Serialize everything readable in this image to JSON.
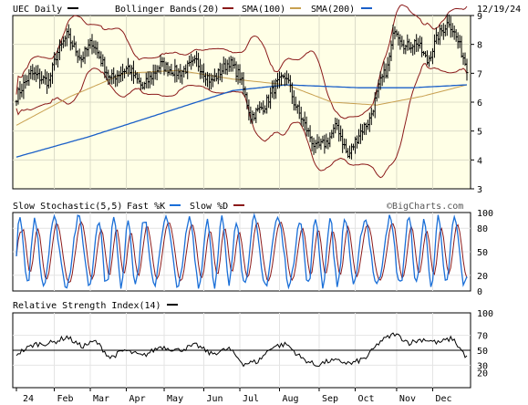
{
  "chart_data": [
    {
      "type": "candlestick",
      "title": "UEC Daily",
      "date": "12/19/24",
      "legend": [
        {
          "label": "Bollinger Bands(20)",
          "color": "#8b1a1a"
        },
        {
          "label": "SMA(100)",
          "color": "#c8a050"
        },
        {
          "label": "SMA(200)",
          "color": "#1a5fc8"
        }
      ],
      "ylim": [
        3,
        9
      ],
      "yticks": [
        3,
        4,
        5,
        6,
        7,
        8,
        9
      ],
      "months": [
        "24",
        "Feb",
        "Mar",
        "Apr",
        "May",
        "Jun",
        "Jul",
        "Aug",
        "Sep",
        "Oct",
        "Nov",
        "Dec"
      ],
      "price_path": [
        [
          0,
          6.2
        ],
        [
          8,
          7.0
        ],
        [
          18,
          6.7
        ],
        [
          22,
          7.6
        ],
        [
          28,
          8.3
        ],
        [
          36,
          7.5
        ],
        [
          42,
          8.1
        ],
        [
          52,
          6.8
        ],
        [
          62,
          7.2
        ],
        [
          70,
          6.5
        ],
        [
          80,
          7.3
        ],
        [
          90,
          7.0
        ],
        [
          100,
          7.4
        ],
        [
          108,
          6.7
        ],
        [
          118,
          7.4
        ],
        [
          124,
          6.9
        ],
        [
          130,
          5.5
        ],
        [
          138,
          5.9
        ],
        [
          144,
          6.6
        ],
        [
          150,
          6.9
        ],
        [
          154,
          6.0
        ],
        [
          160,
          5.2
        ],
        [
          166,
          4.4
        ],
        [
          172,
          4.6
        ],
        [
          178,
          5.2
        ],
        [
          184,
          4.1
        ],
        [
          190,
          4.9
        ],
        [
          196,
          5.4
        ],
        [
          202,
          6.7
        ],
        [
          206,
          7.2
        ],
        [
          210,
          8.6
        ],
        [
          216,
          7.9
        ],
        [
          222,
          8.1
        ],
        [
          228,
          7.4
        ],
        [
          234,
          8.3
        ],
        [
          240,
          8.8
        ],
        [
          245,
          8.1
        ],
        [
          250,
          7.2
        ]
      ],
      "sma200_path": [
        [
          0,
          4.1
        ],
        [
          40,
          4.8
        ],
        [
          80,
          5.6
        ],
        [
          120,
          6.4
        ],
        [
          150,
          6.6
        ],
        [
          190,
          6.5
        ],
        [
          220,
          6.5
        ],
        [
          250,
          6.6
        ]
      ],
      "sma100_path": [
        [
          0,
          5.2
        ],
        [
          30,
          6.2
        ],
        [
          60,
          7.0
        ],
        [
          90,
          7.1
        ],
        [
          120,
          6.8
        ],
        [
          150,
          6.6
        ],
        [
          175,
          6.0
        ],
        [
          200,
          5.9
        ],
        [
          225,
          6.2
        ],
        [
          250,
          6.6
        ]
      ],
      "stochastic": {
        "title": "Slow Stochastic(5,5)",
        "fast_label": "Fast %K",
        "fast_color": "#1a6fd8",
        "slow_label": "Slow %D",
        "slow_color": "#8b1a1a",
        "ylim": [
          0,
          100
        ],
        "yticks": [
          0,
          20,
          50,
          80,
          100
        ],
        "watermark": "©BigCharts.com"
      },
      "rsi": {
        "title": "Relative Strength Index(14)",
        "color": "#000000",
        "ylim": [
          0,
          100
        ],
        "yticks": [
          20,
          30,
          50,
          70,
          100
        ],
        "path": [
          [
            0,
            45
          ],
          [
            10,
            58
          ],
          [
            20,
            60
          ],
          [
            28,
            68
          ],
          [
            36,
            55
          ],
          [
            44,
            62
          ],
          [
            52,
            40
          ],
          [
            60,
            50
          ],
          [
            70,
            42
          ],
          [
            80,
            55
          ],
          [
            90,
            50
          ],
          [
            100,
            57
          ],
          [
            108,
            45
          ],
          [
            118,
            52
          ],
          [
            126,
            32
          ],
          [
            134,
            35
          ],
          [
            142,
            55
          ],
          [
            150,
            58
          ],
          [
            158,
            40
          ],
          [
            166,
            30
          ],
          [
            174,
            36
          ],
          [
            180,
            35
          ],
          [
            186,
            32
          ],
          [
            194,
            40
          ],
          [
            202,
            62
          ],
          [
            210,
            72
          ],
          [
            218,
            60
          ],
          [
            226,
            65
          ],
          [
            234,
            60
          ],
          [
            242,
            66
          ],
          [
            250,
            40
          ]
        ]
      }
    }
  ]
}
